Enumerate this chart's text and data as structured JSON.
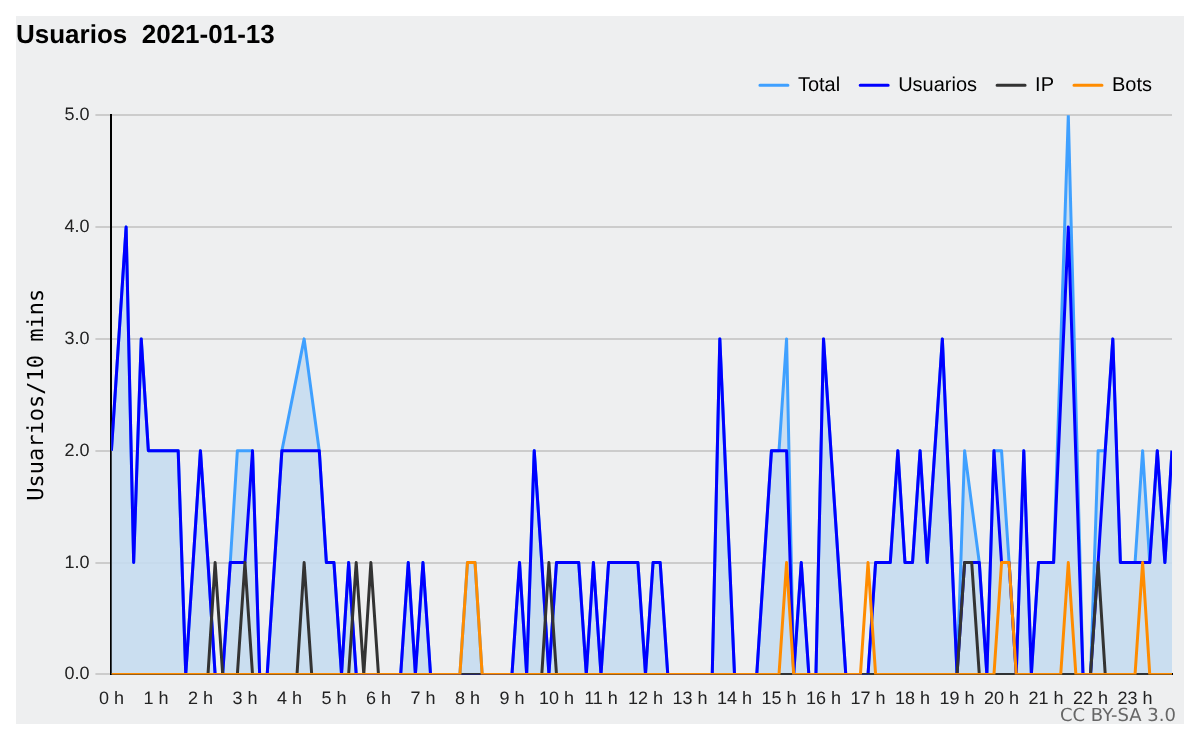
{
  "chart_data": {
    "type": "line",
    "title": "Usuarios  2021-01-13",
    "ylabel": "Usuarios/10 mins",
    "annotations": [
      "CC BY-SA 3.0"
    ],
    "xlim": [
      0,
      23.83
    ],
    "ylim": [
      0,
      5
    ],
    "xticks": [
      {
        "value": 0,
        "label": "0 h"
      },
      {
        "value": 1,
        "label": "1 h"
      },
      {
        "value": 2,
        "label": "2 h"
      },
      {
        "value": 3,
        "label": "3 h"
      },
      {
        "value": 4,
        "label": "4 h"
      },
      {
        "value": 5,
        "label": "5 h"
      },
      {
        "value": 6,
        "label": "6 h"
      },
      {
        "value": 7,
        "label": "7 h"
      },
      {
        "value": 8,
        "label": "8 h"
      },
      {
        "value": 9,
        "label": "9 h"
      },
      {
        "value": 10,
        "label": "10 h"
      },
      {
        "value": 11,
        "label": "11 h"
      },
      {
        "value": 12,
        "label": "12 h"
      },
      {
        "value": 13,
        "label": "13 h"
      },
      {
        "value": 14,
        "label": "14 h"
      },
      {
        "value": 15,
        "label": "15 h"
      },
      {
        "value": 16,
        "label": "16 h"
      },
      {
        "value": 17,
        "label": "17 h"
      },
      {
        "value": 18,
        "label": "18 h"
      },
      {
        "value": 19,
        "label": "19 h"
      },
      {
        "value": 20,
        "label": "20 h"
      },
      {
        "value": 21,
        "label": "21 h"
      },
      {
        "value": 22,
        "label": "22 h"
      },
      {
        "value": 23,
        "label": "23 h"
      }
    ],
    "yticks": [
      {
        "value": 0,
        "label": "0.0"
      },
      {
        "value": 1,
        "label": "1.0"
      },
      {
        "value": 2,
        "label": "2.0"
      },
      {
        "value": 3,
        "label": "3.0"
      },
      {
        "value": 4,
        "label": "4.0"
      },
      {
        "value": 5,
        "label": "5.0"
      }
    ],
    "grid": "y",
    "legend": "top right",
    "marker": "none",
    "series": [
      {
        "name": "Total",
        "type": "area",
        "color": "#3fa0ff",
        "x": [
          0,
          0.33,
          0.5,
          0.67,
          0.83,
          1.5,
          1.67,
          2,
          2.17,
          2.33,
          2.5,
          2.67,
          2.83,
          3,
          3.17,
          3.33,
          3.5,
          3.83,
          4.33,
          4.67,
          4.83,
          5,
          5.17,
          5.33,
          5.5,
          6.5,
          6.67,
          6.83,
          7,
          7.17,
          7.83,
          8,
          8.17,
          8.33,
          9,
          9.17,
          9.33,
          9.5,
          9.67,
          9.83,
          10,
          10.5,
          10.67,
          10.83,
          11,
          11.17,
          11.83,
          12,
          12.17,
          12.33,
          12.5,
          13.5,
          13.67,
          14,
          14.5,
          14.83,
          15,
          15.17,
          15.33,
          15.5,
          15.67,
          15.83,
          16,
          16.5,
          17,
          17.17,
          17.5,
          17.67,
          17.83,
          18,
          18.17,
          18.33,
          18.67,
          19,
          19.17,
          19.5,
          19.67,
          19.83,
          20,
          20.17,
          20.33,
          20.5,
          20.67,
          20.83,
          21.17,
          21.5,
          21.83,
          22,
          22.17,
          22.33,
          22.5,
          22.67,
          23,
          23.17,
          23.33,
          23.5,
          23.67,
          23.83
        ],
        "values": [
          2,
          4,
          1,
          3,
          2,
          2,
          0,
          2,
          1,
          0,
          0,
          1,
          2,
          2,
          2,
          0,
          0,
          2,
          3,
          2,
          1,
          1,
          0,
          1,
          0,
          0,
          1,
          0,
          1,
          0,
          0,
          1,
          1,
          0,
          0,
          1,
          0,
          2,
          1,
          0,
          1,
          1,
          0,
          1,
          0,
          1,
          1,
          0,
          1,
          1,
          0,
          0,
          3,
          0,
          0,
          2,
          2,
          3,
          0,
          1,
          0,
          0,
          3,
          0,
          0,
          1,
          1,
          2,
          1,
          1,
          2,
          1,
          3,
          0,
          2,
          1,
          0,
          2,
          2,
          1,
          0,
          2,
          0,
          1,
          1,
          5,
          0,
          0,
          2,
          2,
          3,
          1,
          1,
          2,
          1,
          2,
          1,
          2
        ]
      },
      {
        "name": "Usuarios",
        "type": "line",
        "color": "#0000ff",
        "x": [
          0,
          0.33,
          0.5,
          0.67,
          0.83,
          1.5,
          1.67,
          2,
          2.17,
          2.33,
          2.5,
          2.67,
          3,
          3.17,
          3.33,
          3.5,
          3.83,
          4.67,
          4.83,
          5,
          5.17,
          5.33,
          5.5,
          6.5,
          6.67,
          6.83,
          7,
          7.17,
          9,
          9.17,
          9.33,
          9.5,
          9.67,
          9.83,
          10,
          10.5,
          10.67,
          10.83,
          11,
          11.17,
          11.83,
          12,
          12.17,
          12.33,
          12.5,
          13.5,
          13.67,
          14,
          14.5,
          14.83,
          15.17,
          15.33,
          15.5,
          15.67,
          15.83,
          16,
          16.5,
          17,
          17.17,
          17.5,
          17.67,
          17.83,
          18,
          18.17,
          18.33,
          18.67,
          19,
          19.17,
          19.5,
          19.67,
          19.83,
          20,
          20.17,
          20.33,
          20.5,
          20.67,
          20.83,
          21.17,
          21.5,
          21.83,
          22,
          22.17,
          22.33,
          22.5,
          22.67,
          23.33,
          23.5,
          23.67,
          23.83
        ],
        "values": [
          2,
          4,
          1,
          3,
          2,
          2,
          0,
          2,
          1,
          0,
          0,
          1,
          1,
          2,
          0,
          0,
          2,
          2,
          1,
          1,
          0,
          1,
          0,
          0,
          1,
          0,
          1,
          0,
          0,
          1,
          0,
          2,
          1,
          0,
          1,
          1,
          0,
          1,
          0,
          1,
          1,
          0,
          1,
          1,
          0,
          0,
          3,
          0,
          0,
          2,
          2,
          0,
          1,
          0,
          0,
          3,
          0,
          0,
          1,
          1,
          2,
          1,
          1,
          2,
          1,
          3,
          0,
          1,
          1,
          0,
          2,
          1,
          1,
          0,
          2,
          0,
          1,
          1,
          4,
          0,
          0,
          1,
          2,
          3,
          1,
          1,
          2,
          1,
          2
        ]
      },
      {
        "name": "IP",
        "type": "line",
        "color": "#333333",
        "x": [
          0,
          2.17,
          2.33,
          2.5,
          2.83,
          3,
          3.17,
          4.17,
          4.33,
          4.5,
          5.33,
          5.5,
          5.67,
          5.83,
          6,
          9.67,
          9.83,
          10,
          19,
          19.17,
          19.33,
          19.5,
          22,
          22.17,
          22.33,
          23.83
        ],
        "values": [
          0,
          0,
          1,
          0,
          0,
          1,
          0,
          0,
          1,
          0,
          0,
          1,
          0,
          1,
          0,
          0,
          1,
          0,
          0,
          1,
          1,
          0,
          0,
          1,
          0,
          0
        ]
      },
      {
        "name": "Bots",
        "type": "line",
        "color": "#ff8c00",
        "x": [
          0,
          7.83,
          8,
          8.17,
          8.33,
          15,
          15.17,
          15.33,
          16.83,
          17,
          17.17,
          19.83,
          20,
          20.17,
          20.33,
          21.33,
          21.5,
          21.67,
          23,
          23.17,
          23.33,
          23.83
        ],
        "values": [
          0,
          0,
          1,
          1,
          0,
          0,
          1,
          0,
          0,
          1,
          0,
          0,
          1,
          1,
          0,
          0,
          1,
          0,
          0,
          1,
          0,
          0
        ]
      }
    ]
  }
}
